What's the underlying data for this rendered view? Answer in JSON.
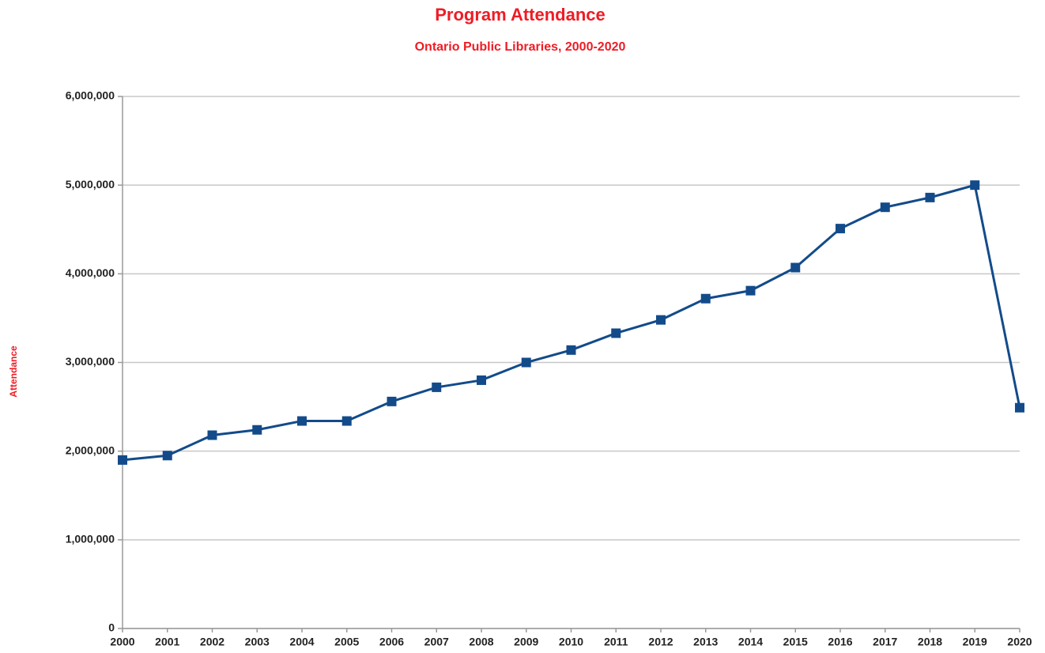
{
  "chart_data": {
    "type": "line",
    "title": "Program Attendance",
    "subtitle": "Ontario Public Libraries, 2000-2020",
    "y_label": "Attendance",
    "categories": [
      "2000",
      "2001",
      "2002",
      "2003",
      "2004",
      "2005",
      "2006",
      "2007",
      "2008",
      "2009",
      "2010",
      "2011",
      "2012",
      "2013",
      "2014",
      "2015",
      "2016",
      "2017",
      "2018",
      "2019",
      "2020"
    ],
    "series": [
      {
        "name": "Attendance",
        "color": "#134b8a",
        "values": [
          1900000,
          1950000,
          2180000,
          2240000,
          2340000,
          2340000,
          2560000,
          2720000,
          2800000,
          3000000,
          3140000,
          3330000,
          3480000,
          3720000,
          3810000,
          4070000,
          4510000,
          4750000,
          4860000,
          5000000,
          2490000
        ]
      }
    ],
    "ylim": [
      0,
      6000000
    ],
    "yticks": [
      0,
      {
        "value": 1000000,
        "label": "1,000,000"
      },
      {
        "value": 2000000,
        "label": "2,000,000"
      },
      {
        "value": 3000000,
        "label": "3,000,000"
      },
      {
        "value": 4000000,
        "label": "4,000,000"
      },
      {
        "value": 5000000,
        "label": "5,000,000"
      },
      {
        "value": 6000000,
        "label": "6,000,000"
      }
    ],
    "grid": true,
    "title_color": "#ee1c25"
  }
}
